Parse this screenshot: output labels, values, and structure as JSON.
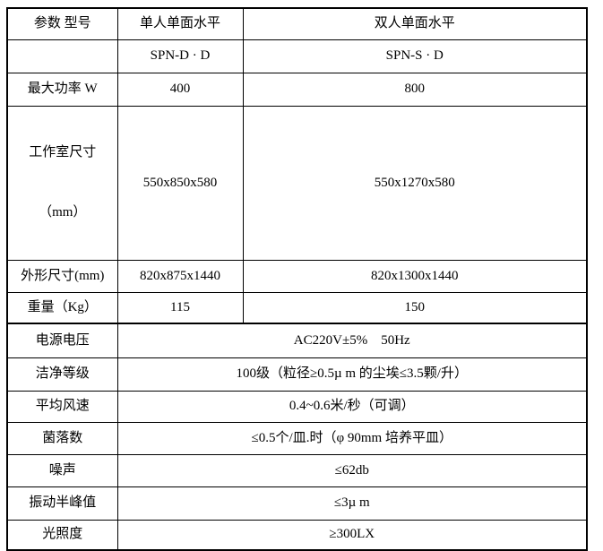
{
  "colors": {
    "border": "#000000",
    "background": "#ffffff",
    "text": "#000000"
  },
  "table": {
    "rows": [
      {
        "label": "参数 型号",
        "v1": "单人单面水平",
        "v2": "双人单面水平"
      },
      {
        "label": "",
        "v1": "SPN-D · D",
        "v2": "SPN-S · D"
      },
      {
        "label": "最大功率 W",
        "v1": "400",
        "v2": "800"
      },
      {
        "label": "工作室尺寸",
        "label2": "（mm）",
        "v1": "550x850x580",
        "v2": "550x1270x580"
      },
      {
        "label": "外形尺寸(mm)",
        "v1": "820x875x1440",
        "v2": "820x1300x1440"
      },
      {
        "label": "重量（Kg）",
        "v1": "115",
        "v2": "150"
      },
      {
        "label": "电源电压",
        "value": "AC220V±5%    50Hz"
      },
      {
        "label": "洁净等级",
        "value": "100级（粒径≥0.5µ m 的尘埃≤3.5颗/升）"
      },
      {
        "label": "平均风速",
        "value": "0.4~0.6米/秒（可调）"
      },
      {
        "label": "菌落数",
        "value": "≤0.5个/皿.时（φ 90mm 培养平皿）"
      },
      {
        "label": "噪声",
        "value": "≤62db"
      },
      {
        "label": "振动半峰值",
        "value": "≤3µ m"
      },
      {
        "label": "光照度",
        "value": "≥300LX"
      }
    ]
  }
}
